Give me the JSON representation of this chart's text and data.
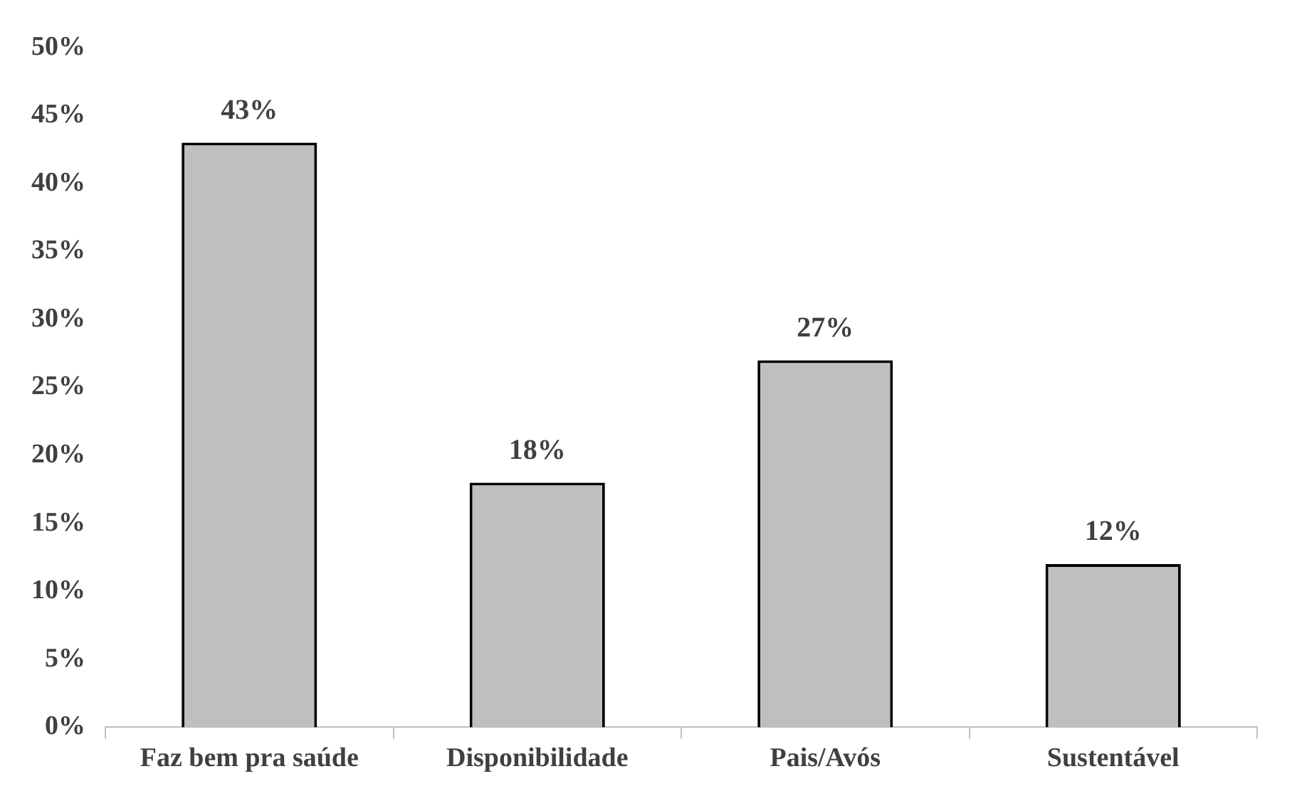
{
  "chart_data": {
    "type": "bar",
    "categories": [
      "Faz bem pra saúde",
      "Disponibilidade",
      "Pais/Avós",
      "Sustentável"
    ],
    "values": [
      43,
      18,
      27,
      12
    ],
    "value_labels": [
      "43%",
      "18%",
      "27%",
      "12%"
    ],
    "color": "#bfbfbf",
    "ylim": [
      0,
      50
    ],
    "yticks": [
      {
        "value": 0,
        "label": "0%"
      },
      {
        "value": 5,
        "label": "5%"
      },
      {
        "value": 10,
        "label": "10%"
      },
      {
        "value": 15,
        "label": "15%"
      },
      {
        "value": 20,
        "label": "20%"
      },
      {
        "value": 25,
        "label": "25%"
      },
      {
        "value": 30,
        "label": "30%"
      },
      {
        "value": 35,
        "label": "35%"
      },
      {
        "value": 40,
        "label": "40%"
      },
      {
        "value": 45,
        "label": "45%"
      },
      {
        "value": 50,
        "label": "50%"
      }
    ],
    "grid": false,
    "legend": false
  }
}
